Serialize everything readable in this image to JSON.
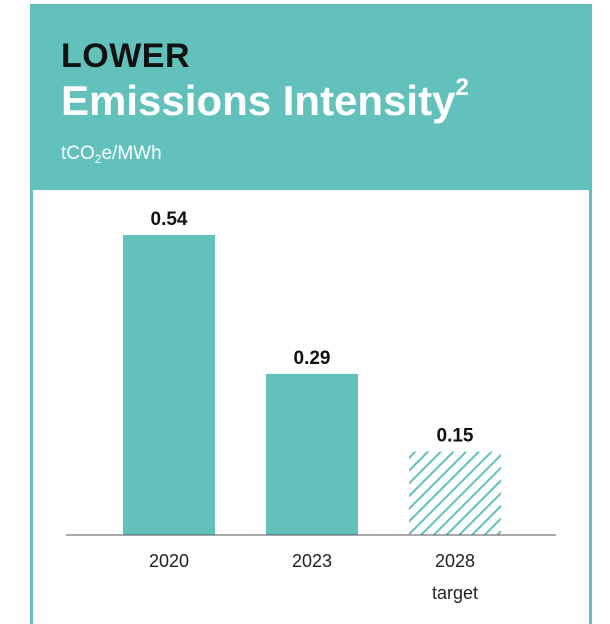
{
  "header": {
    "kicker": "LOWER",
    "title": "Emissions Intensity",
    "title_footnote": "2",
    "unit_prefix": "tCO",
    "unit_sub": "2",
    "unit_suffix": "e/MWh"
  },
  "colors": {
    "accent": "#62c1bb",
    "text": "#111111",
    "axis": "#555555"
  },
  "chart_data": {
    "type": "bar",
    "title": "Emissions Intensity",
    "ylabel": "tCO2e/MWh",
    "xlabel": "",
    "categories": [
      "2020",
      "2023",
      "2028"
    ],
    "category_sublabels": [
      "",
      "",
      "target"
    ],
    "values": [
      0.54,
      0.29,
      0.15
    ],
    "data_labels": [
      "0.54",
      "0.29",
      "0.15"
    ],
    "styles": [
      "solid",
      "solid",
      "hatched"
    ],
    "ylim": [
      0,
      0.6
    ],
    "grid": false,
    "legend": "none"
  }
}
